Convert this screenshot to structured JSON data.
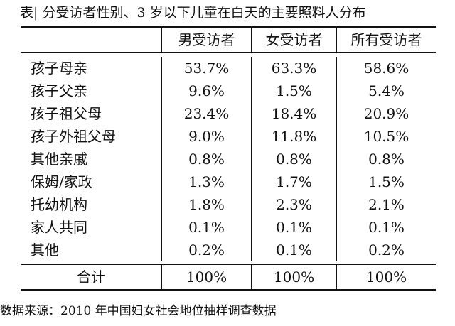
{
  "title": "表|  分受访者性别、3 岁以下儿童在白天的主要照料人分布",
  "table": {
    "headers": [
      "",
      "男受访者",
      "女受访者",
      "所有受访者"
    ],
    "rows": [
      {
        "label": "孩子母亲",
        "values": [
          "53.7%",
          "63.3%",
          "58.6%"
        ]
      },
      {
        "label": "孩子父亲",
        "values": [
          "9.6%",
          "1.5%",
          "5.4%"
        ]
      },
      {
        "label": "孩子祖父母",
        "values": [
          "23.4%",
          "18.4%",
          "20.9%"
        ]
      },
      {
        "label": "孩子外祖父母",
        "values": [
          "9.0%",
          "11.8%",
          "10.5%"
        ]
      },
      {
        "label": "其他亲戚",
        "values": [
          "0.8%",
          "0.8%",
          "0.8%"
        ]
      },
      {
        "label": "保姆/家政",
        "values": [
          "1.3%",
          "1.7%",
          "1.5%"
        ]
      },
      {
        "label": "托幼机构",
        "values": [
          "1.8%",
          "2.3%",
          "2.1%"
        ]
      },
      {
        "label": "家人共同",
        "values": [
          "0.1%",
          "0.1%",
          "0.1%"
        ]
      },
      {
        "label": "其他",
        "values": [
          "0.2%",
          "0.1%",
          "0.2%"
        ]
      }
    ],
    "total": {
      "label": "合计",
      "values": [
        "100%",
        "100%",
        "100%"
      ]
    }
  },
  "source": "数据来源：2010 年中国妇女社会地位抽样调查数据"
}
